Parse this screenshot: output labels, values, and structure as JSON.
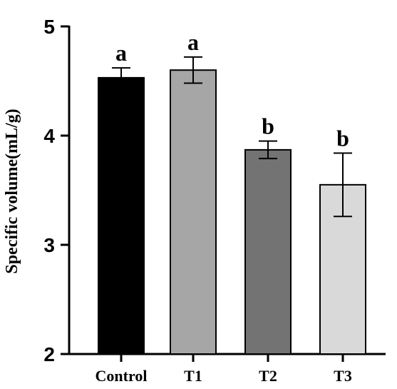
{
  "chart_data": {
    "type": "bar",
    "categories": [
      "Control",
      "T1",
      "T2",
      "T3"
    ],
    "values": [
      4.53,
      4.6,
      3.87,
      3.55
    ],
    "errors": [
      0.09,
      0.12,
      0.08,
      0.29
    ],
    "significance": [
      "a",
      "a",
      "b",
      "b"
    ],
    "colors": [
      "#000000",
      "#a6a6a6",
      "#737373",
      "#d9d9d9"
    ],
    "title": "",
    "xlabel": "",
    "ylabel": "Specific volume(mL/g)",
    "ylim": [
      2,
      5
    ],
    "yticks": [
      "2",
      "3",
      "4",
      "5"
    ],
    "grid": false,
    "legend": "none"
  }
}
